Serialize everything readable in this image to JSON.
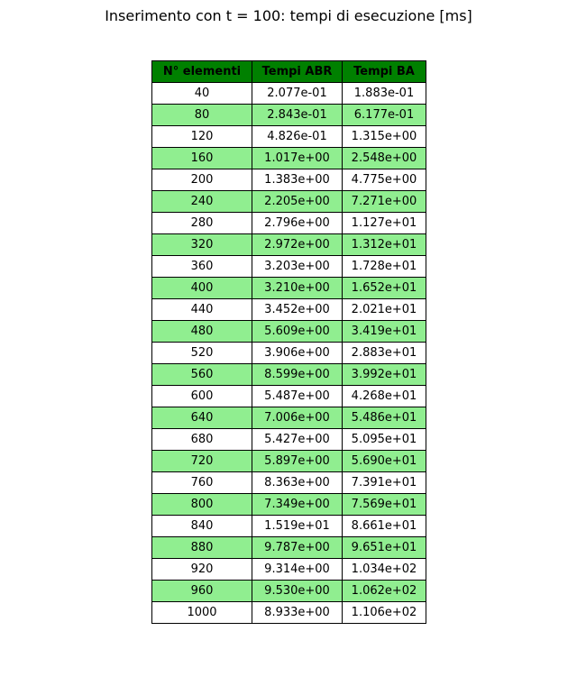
{
  "chart_data": {
    "type": "table",
    "title": "Inserimento con t = 100: tempi di esecuzione [ms]",
    "columns": [
      "N° elementi",
      "Tempi ABR",
      "Tempi BA"
    ],
    "rows": [
      [
        "40",
        "2.077e-01",
        "1.883e-01"
      ],
      [
        "80",
        "2.843e-01",
        "6.177e-01"
      ],
      [
        "120",
        "4.826e-01",
        "1.315e+00"
      ],
      [
        "160",
        "1.017e+00",
        "2.548e+00"
      ],
      [
        "200",
        "1.383e+00",
        "4.775e+00"
      ],
      [
        "240",
        "2.205e+00",
        "7.271e+00"
      ],
      [
        "280",
        "2.796e+00",
        "1.127e+01"
      ],
      [
        "320",
        "2.972e+00",
        "1.312e+01"
      ],
      [
        "360",
        "3.203e+00",
        "1.728e+01"
      ],
      [
        "400",
        "3.210e+00",
        "1.652e+01"
      ],
      [
        "440",
        "3.452e+00",
        "2.021e+01"
      ],
      [
        "480",
        "5.609e+00",
        "3.419e+01"
      ],
      [
        "520",
        "3.906e+00",
        "2.883e+01"
      ],
      [
        "560",
        "8.599e+00",
        "3.992e+01"
      ],
      [
        "600",
        "5.487e+00",
        "4.268e+01"
      ],
      [
        "640",
        "7.006e+00",
        "5.486e+01"
      ],
      [
        "680",
        "5.427e+00",
        "5.095e+01"
      ],
      [
        "720",
        "5.897e+00",
        "5.690e+01"
      ],
      [
        "760",
        "8.363e+00",
        "7.391e+01"
      ],
      [
        "800",
        "7.349e+00",
        "7.569e+01"
      ],
      [
        "840",
        "1.519e+01",
        "8.661e+01"
      ],
      [
        "880",
        "9.787e+00",
        "9.651e+01"
      ],
      [
        "920",
        "9.314e+00",
        "1.034e+02"
      ],
      [
        "960",
        "9.530e+00",
        "1.062e+02"
      ],
      [
        "1000",
        "8.933e+00",
        "1.106e+02"
      ]
    ],
    "colors": {
      "header": "#008000",
      "alternate_row": "#90ee90",
      "row": "#ffffff",
      "border": "#000000"
    }
  }
}
